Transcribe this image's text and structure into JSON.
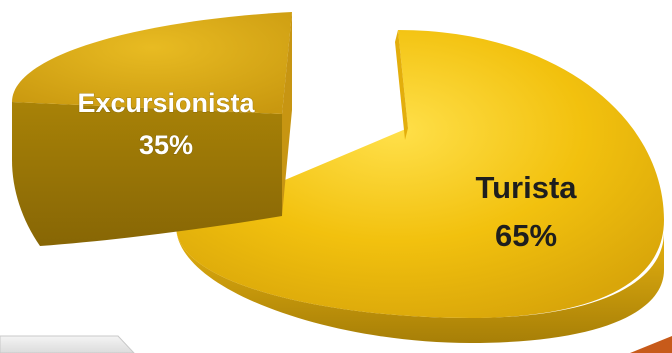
{
  "chart_data": {
    "type": "pie",
    "style": "3d-exploded",
    "categories": [
      "Excursionista",
      "Turista"
    ],
    "values": [
      35,
      65
    ],
    "value_labels": [
      "35%",
      "65%"
    ],
    "colors": {
      "turista_top": "#F2C10E",
      "excursionista_top": "#D8A914",
      "side": "#B38A0A",
      "side_dark": "#8C6B06",
      "label_excursionista": "#FFFFFF",
      "label_turista": "#1E1E1E",
      "corner_accent": "#C75A1A"
    },
    "legend": "none"
  }
}
